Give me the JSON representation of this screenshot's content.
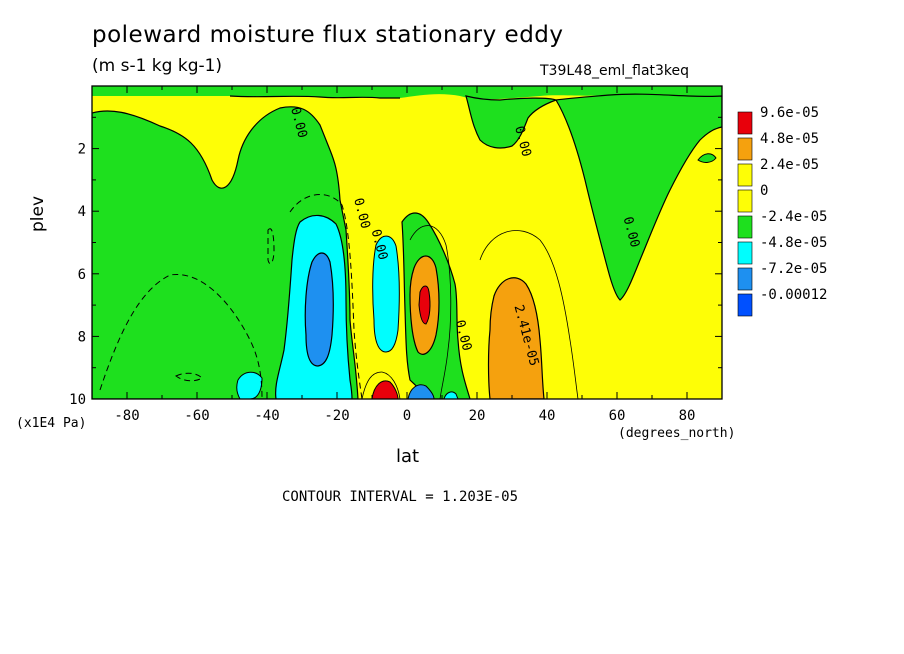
{
  "chart_data": {
    "type": "heatmap",
    "subtype": "filled contour",
    "title": "poleward moisture flux stationary eddy",
    "subtitle": "(m s-1 kg kg-1)",
    "run_label": "T39L48_eml_flat3keq",
    "xlabel": "lat",
    "x_units": "(degrees_north)",
    "ylabel": "plev",
    "y_units": "(x1E4 Pa)",
    "xlim": [
      -90,
      90
    ],
    "ylim": [
      10,
      0
    ],
    "y_reversed": true,
    "x_ticks": [
      -80,
      -60,
      -40,
      -20,
      0,
      20,
      40,
      60,
      80
    ],
    "y_ticks": [
      2,
      4,
      6,
      8,
      10
    ],
    "contour_interval": "CONTOUR INTERVAL = 1.203E-05",
    "legend": {
      "position": "right",
      "levels": [
        "9.6e-05",
        "4.8e-05",
        "2.4e-05",
        "0",
        "-2.4e-05",
        "-4.8e-05",
        "-7.2e-05",
        "-0.00012"
      ],
      "colors": [
        "#e8000b",
        "#f5a10e",
        "#fefe06",
        "#fefe06",
        "#1ee01e",
        "#00fefe",
        "#1e90f0",
        "#0050ff"
      ]
    },
    "contour_labels": [
      {
        "text": "0.00",
        "lat": -32,
        "plev": 1.2
      },
      {
        "text": "0.00",
        "lat": 32,
        "plev": 1.8
      },
      {
        "text": "0.00",
        "lat": -14,
        "plev": 4.1
      },
      {
        "text": "0.00",
        "lat": -9,
        "plev": 5.1
      },
      {
        "text": "0.00",
        "lat": 63,
        "plev": 4.7
      },
      {
        "text": "0.00",
        "lat": 15,
        "plev": 8.0
      },
      {
        "text": "2.41e-05",
        "lat": 33,
        "plev": 8.0
      }
    ],
    "fields": {
      "neutral_color": "#fefe06",
      "negative_regions": [
        {
          "level": "-2.4e-05",
          "desc": "upper levels and tropical mid levels",
          "lat_range": [
            -90,
            -17
          ],
          "plev_range": [
            0,
            10
          ]
        },
        {
          "level": "-4.8e-05",
          "lat_range": [
            -37,
            -15
          ],
          "plev_range": [
            3.5,
            10
          ]
        },
        {
          "level": "-7.2e-05",
          "lat_range": [
            -31,
            -20
          ],
          "plev_range": [
            5.5,
            9.5
          ]
        }
      ],
      "positive_regions": [
        {
          "level": "2.4e-05",
          "lat_range": [
            22,
            37
          ],
          "plev_range": [
            5.8,
            10
          ]
        },
        {
          "level": "4.8e-05",
          "lat_range": [
            1,
            9
          ],
          "plev_range": [
            5.2,
            9.5
          ]
        },
        {
          "level": "9.6e-05",
          "lat_range": [
            3,
            6
          ],
          "plev_range": [
            6.2,
            7.6
          ]
        }
      ]
    }
  }
}
